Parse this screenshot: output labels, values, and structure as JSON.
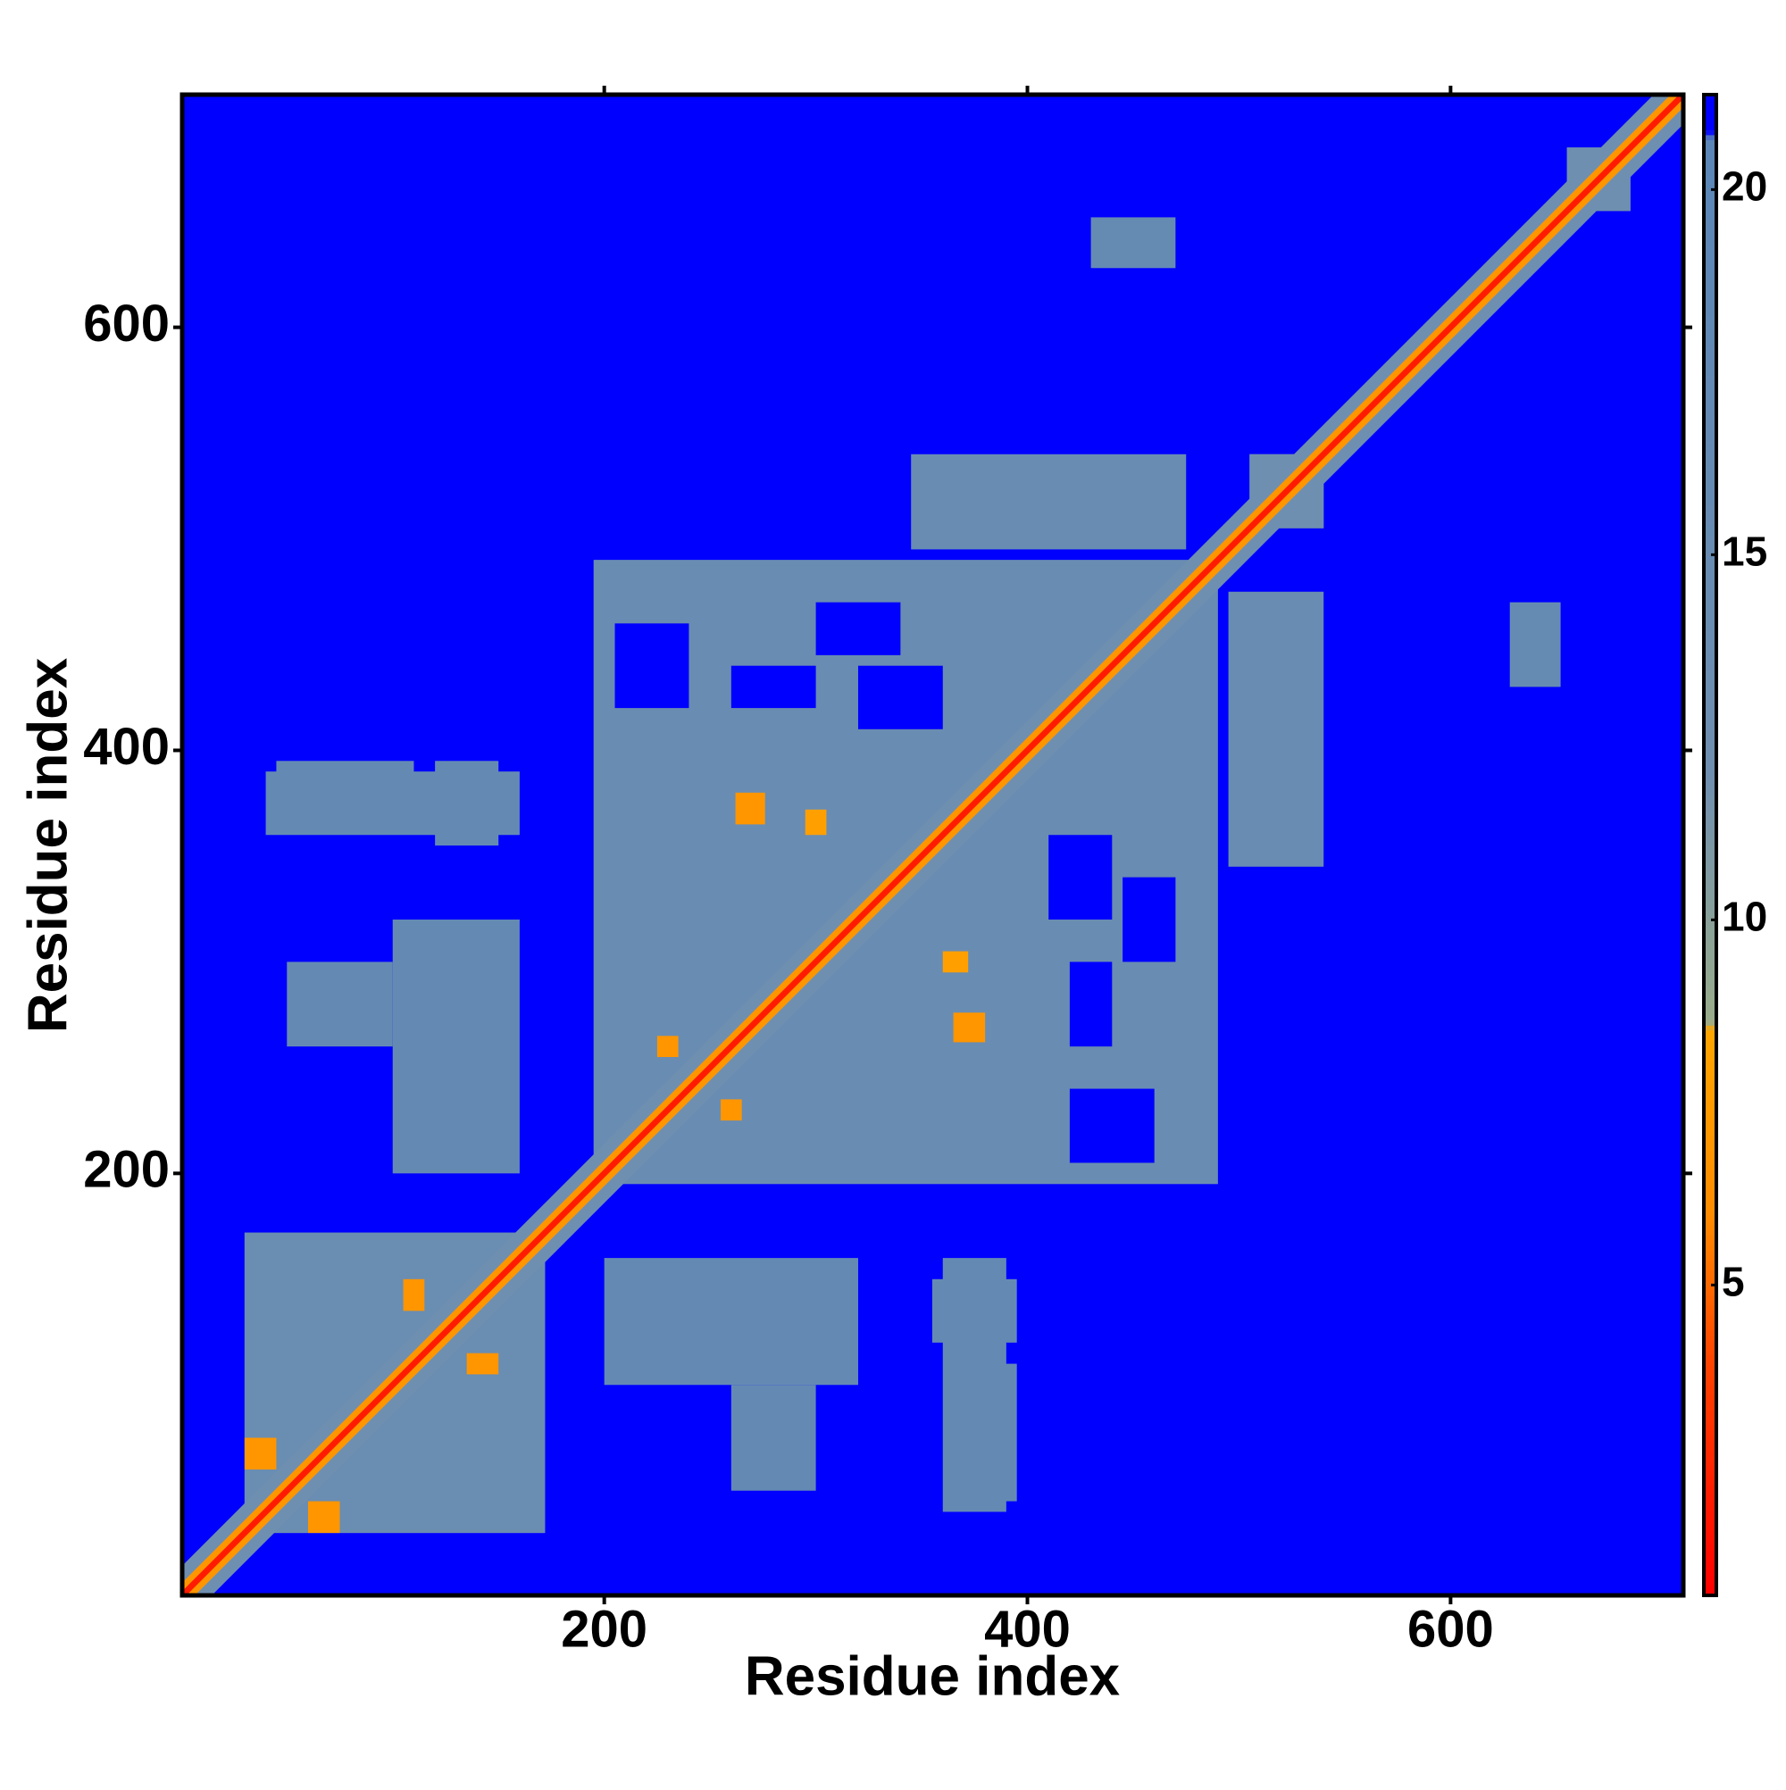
{
  "chart_data": {
    "type": "heatmap",
    "xlabel": "Residue index",
    "ylabel": "Residue index",
    "xlim": [
      0.5,
      710
    ],
    "ylim": [
      0.5,
      710
    ],
    "xticks": [
      200,
      400,
      600
    ],
    "yticks": [
      200,
      400,
      600
    ],
    "clim": [
      0.75,
      21.3
    ],
    "cticks": [
      5,
      10,
      15,
      20
    ],
    "colorscale": [
      {
        "value": 0.75,
        "color": "#ff0000"
      },
      {
        "value": 4,
        "color": "#ff4500"
      },
      {
        "value": 6,
        "color": "#ff8c00"
      },
      {
        "value": 8.5,
        "color": "#ffa500"
      },
      {
        "value": 8.6,
        "color": "#9aad8a"
      },
      {
        "value": 12,
        "color": "#6f8fb0"
      },
      {
        "value": 20.7,
        "color": "#5b86b7"
      },
      {
        "value": 20.8,
        "color": "#0000ff"
      },
      {
        "value": 21.3,
        "color": "#0000ff"
      }
    ],
    "symmetric": true,
    "background": 21,
    "patches": [
      {
        "x": [
          30,
          172
        ],
        "y": [
          30,
          172
        ],
        "value": 14
      },
      {
        "x": [
          195,
          490
        ],
        "y": [
          195,
          490
        ],
        "value": 14.5
      },
      {
        "x": [
          345,
          475
        ],
        "y": [
          495,
          540
        ],
        "value": 15
      },
      {
        "x": [
          430,
          470
        ],
        "y": [
          628,
          652
        ],
        "value": 16
      },
      {
        "x": [
          50,
          100
        ],
        "y": [
          260,
          300
        ],
        "value": 17
      },
      {
        "x": [
          100,
          160
        ],
        "y": [
          200,
          320
        ],
        "value": 17
      },
      {
        "x": [
          45,
          110
        ],
        "y": [
          370,
          395
        ],
        "value": 17
      },
      {
        "x": [
          120,
          150
        ],
        "y": [
          355,
          395
        ],
        "value": 17
      },
      {
        "x": [
          360,
          390
        ],
        "y": [
          40,
          160
        ],
        "value": 17
      },
      {
        "x": [
          505,
          540
        ],
        "y": [
          505,
          540
        ],
        "value": 12
      },
      {
        "x": [
          655,
          685
        ],
        "y": [
          655,
          685
        ],
        "value": 12
      },
      {
        "x": [
          695,
          710
        ],
        "y": [
          695,
          710
        ],
        "value": 12
      },
      {
        "x": [
          260,
          300
        ],
        "y": [
          420,
          440
        ],
        "value": 21
      },
      {
        "x": [
          205,
          240
        ],
        "y": [
          420,
          460
        ],
        "value": 21
      },
      {
        "x": [
          410,
          440
        ],
        "y": [
          320,
          360
        ],
        "value": 21
      },
      {
        "x": [
          300,
          340
        ],
        "y": [
          445,
          470
        ],
        "value": 21
      },
      {
        "x": [
          262,
          276
        ],
        "y": [
          365,
          380
        ],
        "value": 7
      },
      {
        "x": [
          295,
          305
        ],
        "y": [
          360,
          372
        ],
        "value": 8
      },
      {
        "x": [
          105,
          115
        ],
        "y": [
          135,
          150
        ],
        "value": 7
      },
      {
        "x": [
          60,
          75
        ],
        "y": [
          30,
          45
        ],
        "value": 7
      },
      {
        "x": [
          225,
          235
        ],
        "y": [
          255,
          265
        ],
        "value": 7
      }
    ],
    "diagonal": [
      {
        "halfwidth": 14,
        "value": 12
      },
      {
        "halfwidth": 6,
        "value": 7
      },
      {
        "halfwidth": 2,
        "value": 2
      }
    ]
  }
}
